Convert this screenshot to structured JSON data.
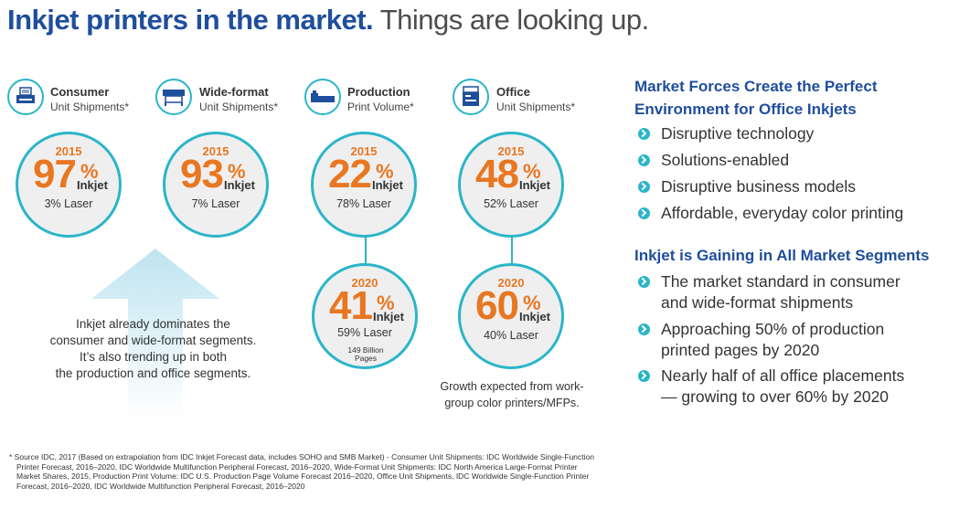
{
  "title": {
    "bold": "Inkjet printers in the market.",
    "light": " Things are looking up."
  },
  "segments": [
    {
      "name": "Consumer",
      "sub": "Unit Shipments*",
      "icon": "consumer-printer-icon",
      "stat2015": {
        "year": "2015",
        "value": "97",
        "pct": "%",
        "inkjet": "Inkjet",
        "laser": "3% Laser"
      }
    },
    {
      "name": "Wide-format",
      "sub": "Unit Shipments*",
      "icon": "wide-format-printer-icon",
      "stat2015": {
        "year": "2015",
        "value": "93",
        "pct": "%",
        "inkjet": "Inkjet",
        "laser": "7% Laser"
      }
    },
    {
      "name": "Production",
      "sub": "Print Volume*",
      "icon": "production-printer-icon",
      "stat2015": {
        "year": "2015",
        "value": "22",
        "pct": "%",
        "inkjet": "Inkjet",
        "laser": "78% Laser"
      },
      "stat2020": {
        "year": "2020",
        "value": "41",
        "pct": "%",
        "inkjet": "Inkjet",
        "laser": "59% Laser",
        "pages": "149 Billion Pages"
      }
    },
    {
      "name": "Office",
      "sub": "Unit Shipments*",
      "icon": "office-printer-icon",
      "stat2015": {
        "year": "2015",
        "value": "48",
        "pct": "%",
        "inkjet": "Inkjet",
        "laser": "52% Laser"
      },
      "stat2020": {
        "year": "2020",
        "value": "60",
        "pct": "%",
        "inkjet": "Inkjet",
        "laser": "40% Laser"
      }
    }
  ],
  "arrow_text": [
    "Inkjet already dominates the",
    "consumer and wide-format segments.",
    "It’s also trending up in both",
    "the production and office segments."
  ],
  "office_note": [
    "Growth expected from work-",
    "group color printers/MFPs."
  ],
  "right": {
    "heading1": [
      "Market Forces Create the Perfect",
      "Environment for Office Inkjets"
    ],
    "bullets1": [
      "Disruptive technology",
      "Solutions-enabled",
      "Disruptive business models",
      "Affordable, everyday color printing"
    ],
    "heading2": "Inkjet is Gaining in All Market Segments",
    "bullets2": [
      [
        "The market standard in consumer",
        "and wide-format shipments"
      ],
      [
        "Approaching 50% of production",
        "printed pages by 2020"
      ],
      [
        "Nearly half of all office placements",
        "— growing to over 60% by 2020"
      ]
    ]
  },
  "footnote": [
    "*  Source IDC, 2017 (Based on extrapolation from IDC Inkjet Forecast data, includes SOHO and SMB Market) - Consumer Unit Shipments: IDC Worldwide Single-Function",
    "Printer Forecast, 2016–2020, IDC Worldwide Multifunction Peripheral Forecast, 2016–2020, Wide-Format Unit Shipments: IDC North America Large-Format Printer",
    "Market Shares, 2015, Production Print Volume: IDC U.S. Production Page Volume Forecast 2016–2020, Office Unit Shipments, IDC Worldwide Single-Function Printer",
    "Forecast, 2016–2020, IDC Worldwide Multifunction Peripheral Forecast, 2016–2020"
  ],
  "colors": {
    "brand_blue": "#1f4e9c",
    "teal": "#2bb5c9",
    "orange": "#e87722",
    "arrow": "#c9e8f2"
  }
}
